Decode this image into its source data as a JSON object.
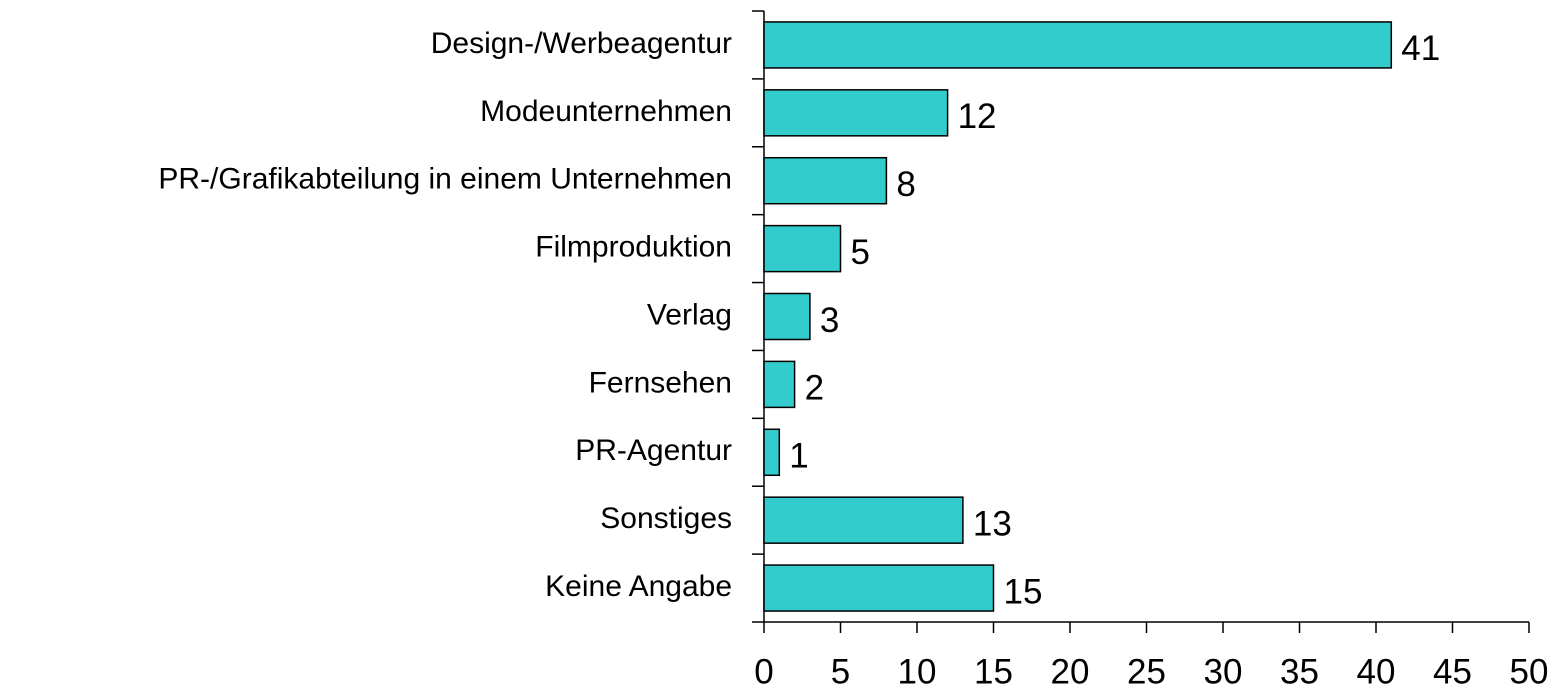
{
  "chart_data": {
    "type": "bar",
    "orientation": "horizontal",
    "categories": [
      "Design-/Werbeagentur",
      "Modeunternehmen",
      "PR-/Grafikabteilung in einem Unternehmen",
      "Filmproduktion",
      "Verlag",
      "Fernsehen",
      "PR-Agentur",
      "Sonstiges",
      "Keine Angabe"
    ],
    "values": [
      41,
      12,
      8,
      5,
      3,
      2,
      1,
      13,
      15
    ],
    "color": "#33cccc",
    "xlim": [
      0,
      50
    ],
    "xticks": [
      0,
      5,
      10,
      15,
      20,
      25,
      30,
      35,
      40,
      45,
      50
    ],
    "grid": false
  }
}
